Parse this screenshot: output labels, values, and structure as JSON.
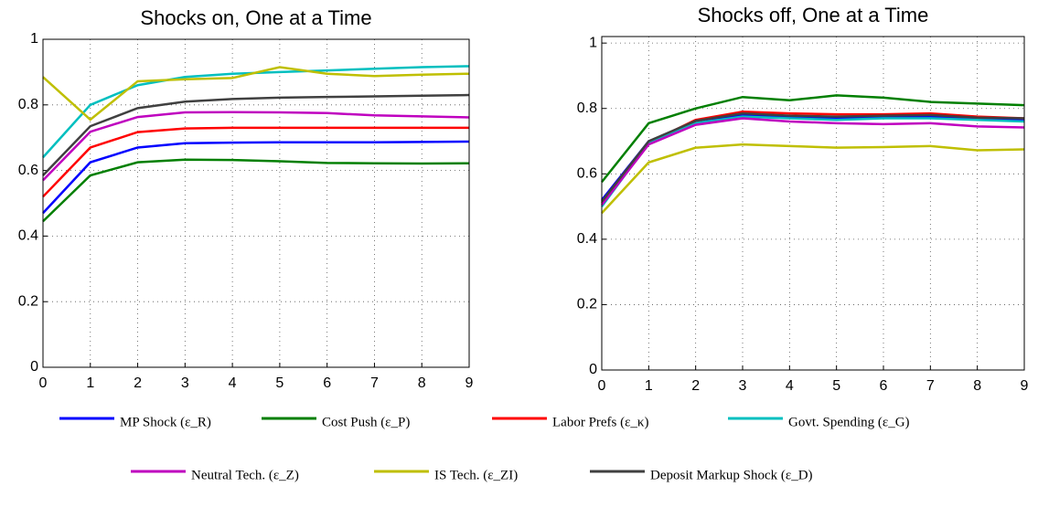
{
  "chart_data": [
    {
      "type": "line",
      "title": "Shocks on, One at a Time",
      "x": [
        0,
        1,
        2,
        3,
        4,
        5,
        6,
        7,
        8,
        9
      ],
      "xlim": [
        0,
        9
      ],
      "xticks": [
        0,
        1,
        2,
        3,
        4,
        5,
        6,
        7,
        8,
        9
      ],
      "ylim": [
        0,
        1
      ],
      "yticks": [
        0,
        0.2,
        0.4,
        0.6,
        0.8,
        1
      ],
      "grid": true,
      "series": [
        {
          "name": "MP Shock (ε_R)",
          "color": "#0000ff",
          "values": [
            0.47,
            0.625,
            0.67,
            0.683,
            0.685,
            0.686,
            0.686,
            0.686,
            0.687,
            0.688
          ]
        },
        {
          "name": "Cost Push (ε_P)",
          "color": "#007f00",
          "values": [
            0.445,
            0.585,
            0.625,
            0.633,
            0.632,
            0.628,
            0.623,
            0.622,
            0.621,
            0.622
          ]
        },
        {
          "name": "Labor Prefs (ε_κ)",
          "color": "#ff0000",
          "values": [
            0.52,
            0.67,
            0.717,
            0.728,
            0.73,
            0.73,
            0.73,
            0.73,
            0.73,
            0.73
          ]
        },
        {
          "name": "Govt. Spending (ε_G)",
          "color": "#00bfbf",
          "values": [
            0.64,
            0.8,
            0.86,
            0.885,
            0.895,
            0.9,
            0.905,
            0.91,
            0.915,
            0.918
          ]
        },
        {
          "name": "Neutral Tech. (ε_Z)",
          "color": "#bf00bf",
          "values": [
            0.57,
            0.718,
            0.763,
            0.777,
            0.778,
            0.777,
            0.775,
            0.768,
            0.765,
            0.762
          ]
        },
        {
          "name": "IS Tech. (ε_ZI)",
          "color": "#bfbf00",
          "values": [
            0.885,
            0.755,
            0.872,
            0.878,
            0.882,
            0.915,
            0.895,
            0.888,
            0.892,
            0.895
          ]
        },
        {
          "name": "Deposit Markup Shock (ε_D)",
          "color": "#404040",
          "values": [
            0.585,
            0.735,
            0.79,
            0.81,
            0.818,
            0.822,
            0.824,
            0.826,
            0.828,
            0.83
          ]
        }
      ]
    },
    {
      "type": "line",
      "title": "Shocks off, One at a Time",
      "x": [
        0,
        1,
        2,
        3,
        4,
        5,
        6,
        7,
        8,
        9
      ],
      "xlim": [
        0,
        9
      ],
      "xticks": [
        0,
        1,
        2,
        3,
        4,
        5,
        6,
        7,
        8,
        9
      ],
      "ylim": [
        0,
        1.02
      ],
      "yticks": [
        0,
        0.2,
        0.4,
        0.6,
        0.8,
        1
      ],
      "grid": true,
      "series": [
        {
          "color": "#0000ff",
          "values": [
            0.52,
            0.7,
            0.755,
            0.78,
            0.775,
            0.77,
            0.772,
            0.775,
            0.768,
            0.765
          ]
        },
        {
          "color": "#007f00",
          "values": [
            0.575,
            0.755,
            0.8,
            0.835,
            0.825,
            0.84,
            0.833,
            0.82,
            0.815,
            0.81
          ]
        },
        {
          "color": "#ff0000",
          "values": [
            0.51,
            0.695,
            0.765,
            0.79,
            0.785,
            0.782,
            0.782,
            0.785,
            0.775,
            0.77
          ]
        },
        {
          "color": "#00bfbf",
          "values": [
            0.5,
            0.695,
            0.755,
            0.775,
            0.77,
            0.765,
            0.77,
            0.77,
            0.765,
            0.76
          ]
        },
        {
          "color": "#bf00bf",
          "values": [
            0.505,
            0.69,
            0.75,
            0.77,
            0.76,
            0.755,
            0.752,
            0.755,
            0.745,
            0.742
          ]
        },
        {
          "color": "#bfbf00",
          "values": [
            0.48,
            0.635,
            0.68,
            0.69,
            0.685,
            0.68,
            0.682,
            0.685,
            0.672,
            0.675
          ]
        },
        {
          "color": "#404040",
          "values": [
            0.515,
            0.7,
            0.762,
            0.785,
            0.778,
            0.775,
            0.778,
            0.78,
            0.772,
            0.77
          ]
        }
      ]
    }
  ]
}
